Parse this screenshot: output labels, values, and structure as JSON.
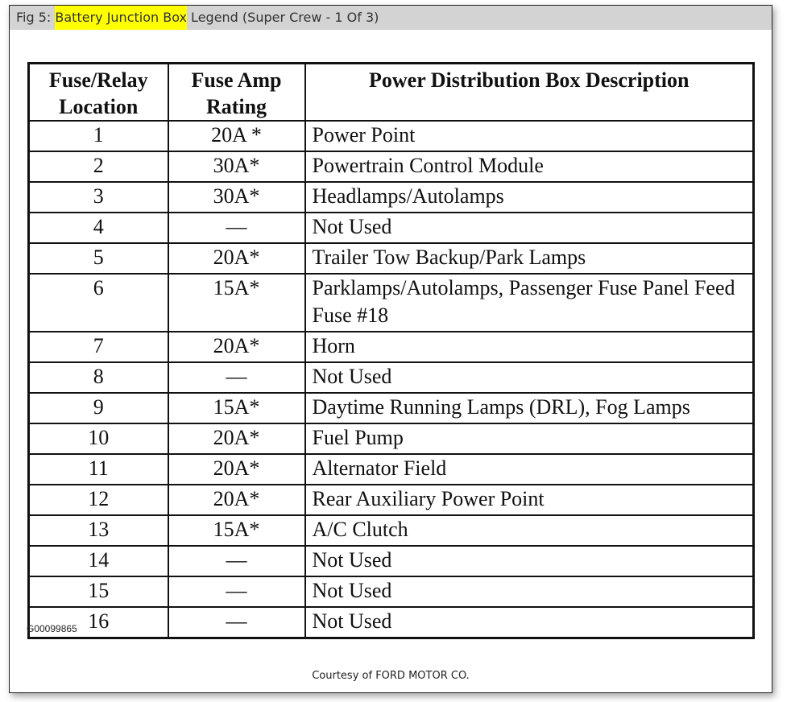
{
  "title": {
    "prefix": "Fig 5: ",
    "highlight": "Battery Junction Box",
    "suffix": " Legend (Super Crew - 1 Of 3)",
    "highlight_color": "#ffff00"
  },
  "table": {
    "headers": [
      "Fuse/Relay Location",
      "Fuse Amp Rating",
      "Power Distribution Box Description"
    ],
    "rows": [
      {
        "location": "1",
        "rating": "20A *",
        "description": "Power Point"
      },
      {
        "location": "2",
        "rating": "30A*",
        "description": "Powertrain Control Module"
      },
      {
        "location": "3",
        "rating": "30A*",
        "description": "Headlamps/Autolamps"
      },
      {
        "location": "4",
        "rating": "—",
        "description": "Not Used"
      },
      {
        "location": "5",
        "rating": "20A*",
        "description": "Trailer Tow Backup/Park Lamps"
      },
      {
        "location": "6",
        "rating": "15A*",
        "description": "Parklamps/Autolamps, Passenger Fuse Panel Feed Fuse #18"
      },
      {
        "location": "7",
        "rating": "20A*",
        "description": "Horn"
      },
      {
        "location": "8",
        "rating": "—",
        "description": "Not Used"
      },
      {
        "location": "9",
        "rating": "15A*",
        "description": "Daytime Running Lamps (DRL), Fog Lamps"
      },
      {
        "location": "10",
        "rating": "20A*",
        "description": "Fuel Pump"
      },
      {
        "location": "11",
        "rating": "20A*",
        "description": "Alternator Field"
      },
      {
        "location": "12",
        "rating": "20A*",
        "description": "Rear Auxiliary Power Point"
      },
      {
        "location": "13",
        "rating": "15A*",
        "description": "A/C Clutch"
      },
      {
        "location": "14",
        "rating": "—",
        "description": "Not Used"
      },
      {
        "location": "15",
        "rating": "—",
        "description": "Not Used"
      },
      {
        "location": "16",
        "rating": "—",
        "description": "Not Used"
      }
    ]
  },
  "figure_code": "G00099865",
  "courtesy": "Courtesy of FORD MOTOR CO."
}
